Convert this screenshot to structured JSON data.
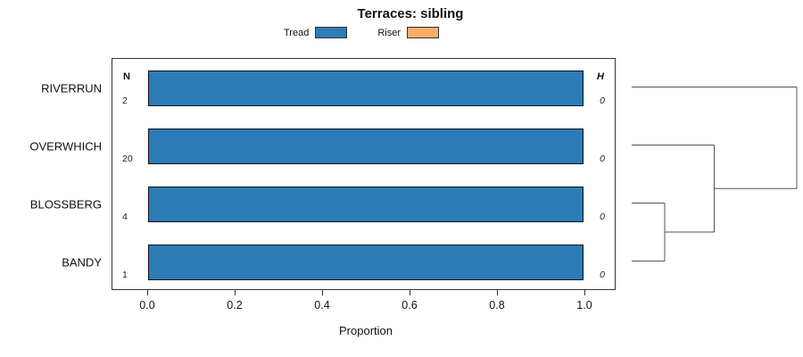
{
  "chart_data": {
    "type": "bar",
    "orientation": "horizontal",
    "title": "Terraces: sibling",
    "categories": [
      "RIVERRUN",
      "OVERWHICH",
      "BLOSSBERG",
      "BANDY"
    ],
    "series": [
      {
        "name": "Tread",
        "color": "#2c7cb8",
        "values": [
          1.0,
          1.0,
          1.0,
          1.0
        ]
      },
      {
        "name": "Riser",
        "color": "#fcae69",
        "values": [
          0.0,
          0.0,
          0.0,
          0.0
        ]
      }
    ],
    "n_header": "N",
    "n_values": [
      2,
      20,
      4,
      1
    ],
    "h_header": "H",
    "h_values": [
      0,
      0,
      0,
      0
    ],
    "xlabel": "Proportion",
    "xticks": [
      "0.0",
      "0.2",
      "0.4",
      "0.6",
      "0.8",
      "1.0"
    ],
    "xlim": [
      0.0,
      1.0
    ],
    "grid": false,
    "legend_position": "top",
    "dendrogram": {
      "side": "right",
      "merges": [
        {
          "a": 2,
          "b": 3,
          "height": 0.2
        },
        {
          "a": "m0",
          "b": 1,
          "height": 0.5
        },
        {
          "a": "m1",
          "b": 0,
          "height": 1.0
        }
      ]
    }
  }
}
